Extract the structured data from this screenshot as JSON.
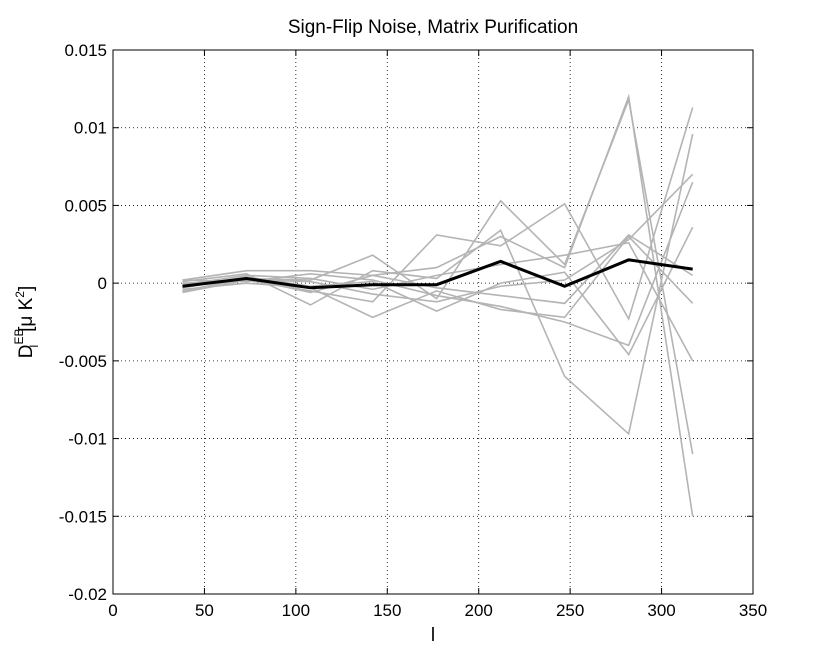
{
  "chart_data": {
    "type": "line",
    "title": "Sign-Flip Noise, Matrix Purification",
    "xlabel": "l",
    "ylabel": {
      "base": "D",
      "subscript": "l",
      "superscript": "EB",
      "unit_open": "[",
      "unit_mu": "μ",
      "unit_k": " K",
      "unit_power": "2",
      "unit_close": "]"
    },
    "xlim": [
      0,
      350
    ],
    "ylim": [
      -0.02,
      0.015
    ],
    "xticks": [
      0,
      50,
      100,
      150,
      200,
      250,
      300,
      350
    ],
    "xtick_labels": [
      "0",
      "50",
      "100",
      "150",
      "200",
      "250",
      "300",
      "350"
    ],
    "yticks": [
      -0.02,
      -0.015,
      -0.01,
      -0.005,
      0,
      0.005,
      0.01,
      0.015
    ],
    "ytick_labels": [
      "-0.02",
      "-0.015",
      "-0.01",
      "-0.005",
      "0",
      "0.005",
      "0.01",
      "0.015"
    ],
    "grid": true,
    "x": [
      38,
      73,
      108,
      142,
      177,
      212,
      247,
      282,
      317
    ],
    "series": [
      {
        "color": "#b4b4b4",
        "values": [
          0.0002,
          0.0008,
          0.0008,
          0.0005,
          0.001,
          0.003,
          0.001,
          0.012,
          -0.015
        ]
      },
      {
        "color": "#b4b4b4",
        "values": [
          -0.0002,
          0.0003,
          0.0002,
          0.0018,
          -0.001,
          0.0053,
          0.0012,
          0.0118,
          -0.011
        ]
      },
      {
        "color": "#b4b4b4",
        "values": [
          -0.0006,
          0.0002,
          -0.0005,
          -0.0012,
          0.0031,
          0.0024,
          0.0051,
          -0.0023,
          0.0113
        ]
      },
      {
        "color": "#b4b4b4",
        "values": [
          0.0001,
          0.0006,
          -0.0014,
          0.0008,
          0.0003,
          0.0034,
          -0.006,
          -0.0097,
          0.0096
        ]
      },
      {
        "color": "#b4b4b4",
        "values": [
          -0.0004,
          0.0,
          -0.0003,
          -0.0022,
          -0.0005,
          -0.0017,
          -0.0022,
          0.003,
          -0.0013
        ]
      },
      {
        "color": "#b4b4b4",
        "values": [
          0.0,
          0.0002,
          0.0001,
          -0.0007,
          -0.0012,
          -0.0002,
          0.0002,
          0.0028,
          0.007
        ]
      },
      {
        "color": "#b4b4b4",
        "values": [
          -0.0003,
          0.0004,
          -0.0002,
          0.0001,
          -0.0018,
          0.0,
          0.0007,
          -0.0046,
          0.0036
        ]
      },
      {
        "color": "#b4b4b4",
        "values": [
          0.0002,
          0.0001,
          0.0006,
          0.0002,
          -0.0008,
          -0.0015,
          -0.0025,
          -0.004,
          0.0065
        ]
      },
      {
        "color": "#b4b4b4",
        "values": [
          -0.0001,
          0.0005,
          0.0003,
          -0.0004,
          0.0005,
          0.0012,
          0.0018,
          0.0026,
          -0.005
        ]
      },
      {
        "color": "#b4b4b4",
        "values": [
          -0.0005,
          0.0003,
          -0.0006,
          0.0005,
          -0.0003,
          -0.0008,
          -0.0013,
          0.0031,
          0.0005
        ]
      },
      {
        "color": "#000000",
        "values": [
          -0.0002,
          0.0003,
          -0.0003,
          -0.0001,
          -0.0001,
          0.0014,
          -0.0002,
          0.0015,
          0.0009
        ]
      }
    ]
  }
}
